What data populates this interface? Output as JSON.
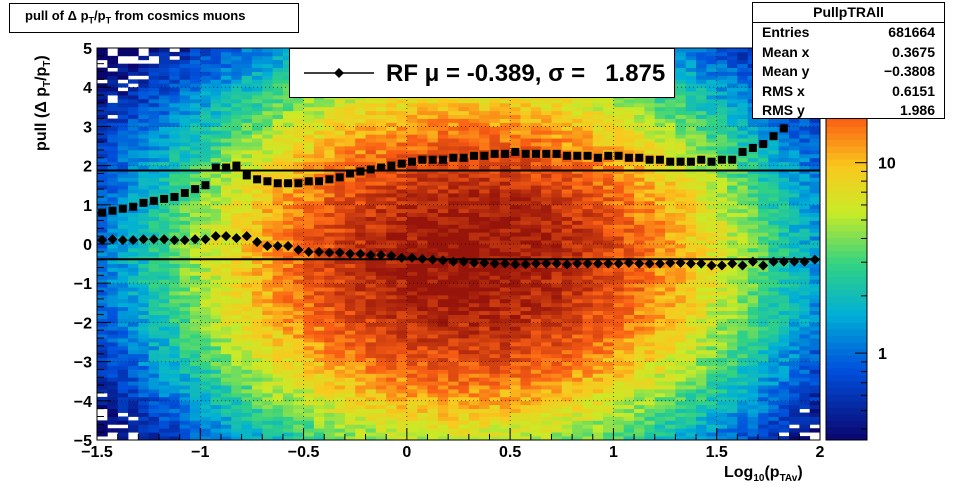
{
  "title": "pull of Δ p_T/p_T from cosmics muons",
  "title_parts": {
    "pre": "pull of ",
    "delta": "Δ",
    "p1": " p",
    "sub1": "T",
    "mid": "/p",
    "sub2": "T",
    "post": " from cosmics muons"
  },
  "stats": {
    "name": "PullpTRAll",
    "rows": [
      {
        "label": "Entries",
        "value": "681664"
      },
      {
        "label": "Mean x",
        "value": "0.3675"
      },
      {
        "label": "Mean y",
        "value": "−0.3808"
      },
      {
        "label": "RMS x",
        "value": "0.6151"
      },
      {
        "label": "RMS y",
        "value": "1.986"
      }
    ]
  },
  "legend": {
    "text": "RF μ = -0.389, σ =   1.875"
  },
  "x_label": {
    "main": "Log",
    "sub1": "10",
    "mid": "(p",
    "sub2": "TAv",
    "post": ")"
  },
  "y_label": {
    "main": "pull (Δ p",
    "sub1": "T",
    "mid": "/p",
    "sub2": "T",
    "post": ")"
  },
  "colors": {
    "marker": "#000000",
    "fit_line": "#000000",
    "frame": "#000000"
  },
  "chart_data": {
    "type": "heatmap",
    "xlim": [
      -1.5,
      2
    ],
    "ylim": [
      -5,
      5
    ],
    "x_ticks": [
      "−1.5",
      "−1",
      "−0.5",
      "0",
      "0.5",
      "1",
      "1.5",
      "2"
    ],
    "x_tick_values": [
      -1.5,
      -1,
      -0.5,
      0,
      0.5,
      1,
      1.5,
      2
    ],
    "y_ticks": [
      "−5",
      "−4",
      "−3",
      "−2",
      "−1",
      "0",
      "1",
      "2",
      "3",
      "4",
      "5"
    ],
    "y_tick_values": [
      -5,
      -4,
      -3,
      -2,
      -1,
      0,
      1,
      2,
      3,
      4,
      5
    ],
    "colorbar": {
      "scale": "log",
      "min": 0.35,
      "max": 40,
      "ticks": [
        "1",
        "10"
      ],
      "tick_values": [
        1,
        10
      ]
    },
    "grid": true,
    "fit_lines": [
      {
        "name": "mean",
        "y": -0.389
      },
      {
        "name": "sigma",
        "y": 1.875
      }
    ],
    "series": [
      {
        "name": "mean",
        "marker": "diamond",
        "x": [
          -1.475,
          -1.425,
          -1.375,
          -1.325,
          -1.275,
          -1.225,
          -1.175,
          -1.125,
          -1.075,
          -1.025,
          -0.975,
          -0.925,
          -0.875,
          -0.825,
          -0.775,
          -0.725,
          -0.675,
          -0.625,
          -0.575,
          -0.525,
          -0.475,
          -0.425,
          -0.375,
          -0.325,
          -0.275,
          -0.225,
          -0.175,
          -0.125,
          -0.075,
          -0.025,
          0.025,
          0.075,
          0.125,
          0.175,
          0.225,
          0.275,
          0.325,
          0.375,
          0.425,
          0.475,
          0.525,
          0.575,
          0.625,
          0.675,
          0.725,
          0.775,
          0.825,
          0.875,
          0.925,
          0.975,
          1.025,
          1.075,
          1.125,
          1.175,
          1.225,
          1.275,
          1.325,
          1.375,
          1.425,
          1.475,
          1.525,
          1.575,
          1.625,
          1.675,
          1.725,
          1.775,
          1.825,
          1.875,
          1.925,
          1.975
        ],
        "values": [
          0.1,
          0.12,
          0.1,
          0.1,
          0.12,
          0.12,
          0.12,
          0.1,
          0.1,
          0.12,
          0.12,
          0.2,
          0.2,
          0.15,
          0.2,
          0.05,
          -0.05,
          -0.05,
          -0.05,
          -0.15,
          -0.2,
          -0.2,
          -0.22,
          -0.22,
          -0.25,
          -0.25,
          -0.28,
          -0.28,
          -0.3,
          -0.35,
          -0.35,
          -0.38,
          -0.4,
          -0.42,
          -0.45,
          -0.45,
          -0.48,
          -0.48,
          -0.5,
          -0.5,
          -0.52,
          -0.52,
          -0.5,
          -0.5,
          -0.5,
          -0.52,
          -0.5,
          -0.5,
          -0.5,
          -0.5,
          -0.5,
          -0.48,
          -0.5,
          -0.5,
          -0.5,
          -0.48,
          -0.48,
          -0.5,
          -0.5,
          -0.55,
          -0.55,
          -0.5,
          -0.55,
          -0.45,
          -0.55,
          -0.45,
          -0.45,
          -0.45,
          -0.45,
          -0.4
        ]
      },
      {
        "name": "sigma",
        "marker": "square",
        "x": [
          -1.475,
          -1.425,
          -1.375,
          -1.325,
          -1.275,
          -1.225,
          -1.175,
          -1.125,
          -1.075,
          -1.025,
          -0.975,
          -0.925,
          -0.875,
          -0.825,
          -0.775,
          -0.725,
          -0.675,
          -0.625,
          -0.575,
          -0.525,
          -0.475,
          -0.425,
          -0.375,
          -0.325,
          -0.275,
          -0.225,
          -0.175,
          -0.125,
          -0.075,
          -0.025,
          0.025,
          0.075,
          0.125,
          0.175,
          0.225,
          0.275,
          0.325,
          0.375,
          0.425,
          0.475,
          0.525,
          0.575,
          0.625,
          0.675,
          0.725,
          0.775,
          0.825,
          0.875,
          0.925,
          0.975,
          1.025,
          1.075,
          1.125,
          1.175,
          1.225,
          1.275,
          1.325,
          1.375,
          1.425,
          1.475,
          1.525,
          1.575,
          1.625,
          1.675,
          1.725,
          1.775,
          1.825,
          1.875,
          1.925,
          1.975
        ],
        "values": [
          0.8,
          0.85,
          0.9,
          0.95,
          1.05,
          1.1,
          1.15,
          1.2,
          1.3,
          1.4,
          1.5,
          1.95,
          1.95,
          2.0,
          1.75,
          1.65,
          1.6,
          1.55,
          1.55,
          1.55,
          1.6,
          1.6,
          1.65,
          1.7,
          1.8,
          1.85,
          1.9,
          1.95,
          2.0,
          2.05,
          2.1,
          2.15,
          2.15,
          2.15,
          2.2,
          2.2,
          2.25,
          2.25,
          2.3,
          2.3,
          2.35,
          2.3,
          2.3,
          2.3,
          2.3,
          2.25,
          2.25,
          2.25,
          2.2,
          2.25,
          2.25,
          2.2,
          2.2,
          2.15,
          2.15,
          2.1,
          2.1,
          2.1,
          2.15,
          2.1,
          2.15,
          2.15,
          2.35,
          2.45,
          2.55,
          2.75,
          2.95,
          3.35,
          3.55,
          3.95
        ]
      }
    ]
  }
}
